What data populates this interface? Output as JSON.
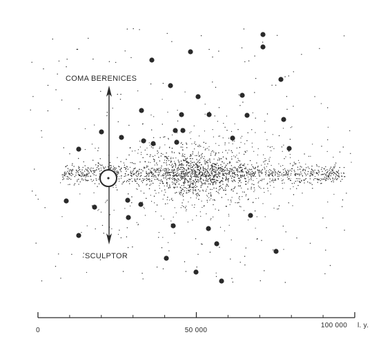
{
  "labels": {
    "north": "COMA BERENICES",
    "south": "SCULPTOR"
  },
  "scale": {
    "ticks": [
      {
        "value": 0,
        "label": "0"
      },
      {
        "value": 50000,
        "label": "50 000"
      },
      {
        "value": 100000,
        "label": "100 000"
      }
    ],
    "unit": "l. y."
  },
  "colors": {
    "ink": "#2a2a2a",
    "background": "#ffffff"
  },
  "icons": {
    "sun": "sun-position-marker"
  }
}
